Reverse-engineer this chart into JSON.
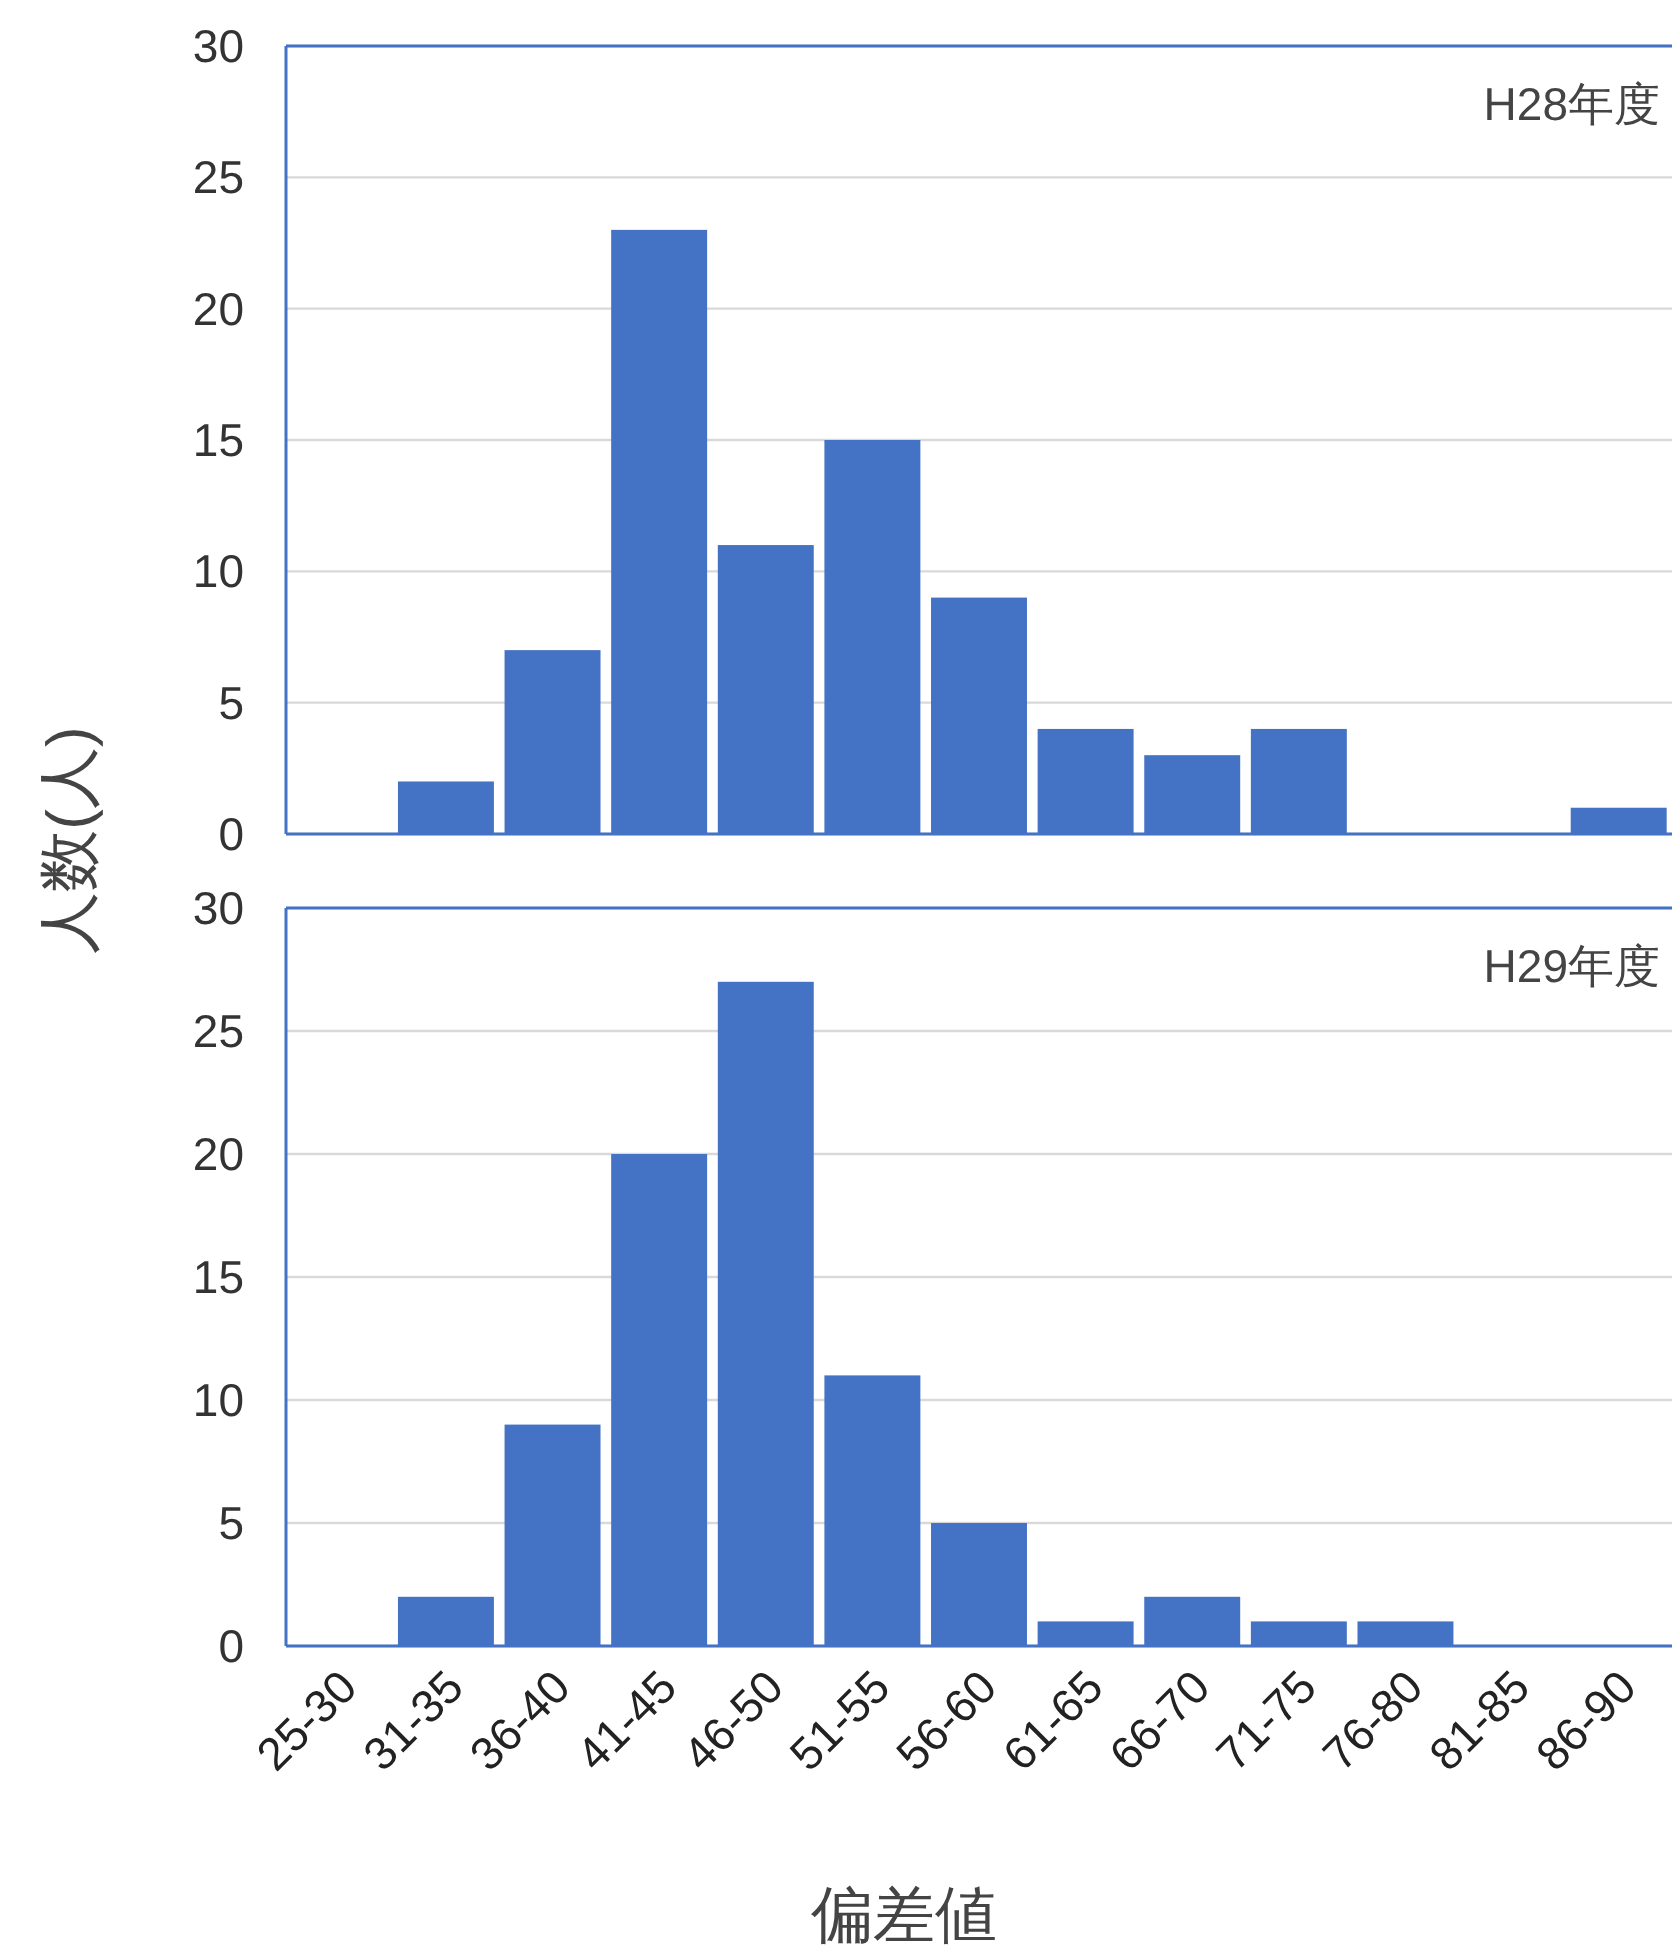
{
  "chart_data": [
    {
      "type": "bar",
      "ylabel": "人数(人)",
      "annotations": [
        "H28年度"
      ],
      "categories": [
        null,
        null,
        null,
        null,
        null,
        null,
        null,
        null,
        null,
        null,
        null,
        null,
        null
      ],
      "values": [
        0,
        2,
        7,
        23,
        11,
        15,
        9,
        4,
        3,
        4,
        0,
        0,
        1
      ],
      "color": "#4472c4",
      "ylim": [
        0,
        30
      ],
      "yticks": [
        0,
        5,
        10,
        15,
        20,
        25,
        30
      ],
      "grid": "y",
      "tick_labels": "y"
    },
    {
      "type": "bar",
      "xlabel": "偏差値",
      "annotations": [
        "H29年度"
      ],
      "categories": [
        "25-30",
        "31-35",
        "36-40",
        "41-45",
        "46-50",
        "51-55",
        "56-60",
        "61-65",
        "66-70",
        "71-75",
        "76-80",
        "81-85",
        "86-90"
      ],
      "values": [
        0,
        2,
        9,
        20,
        27,
        11,
        5,
        1,
        2,
        1,
        1,
        0,
        0
      ],
      "color": "#4472c4",
      "ylim": [
        0,
        30
      ],
      "yticks": [
        0,
        5,
        10,
        15,
        20,
        25,
        30
      ],
      "grid": "y"
    }
  ]
}
